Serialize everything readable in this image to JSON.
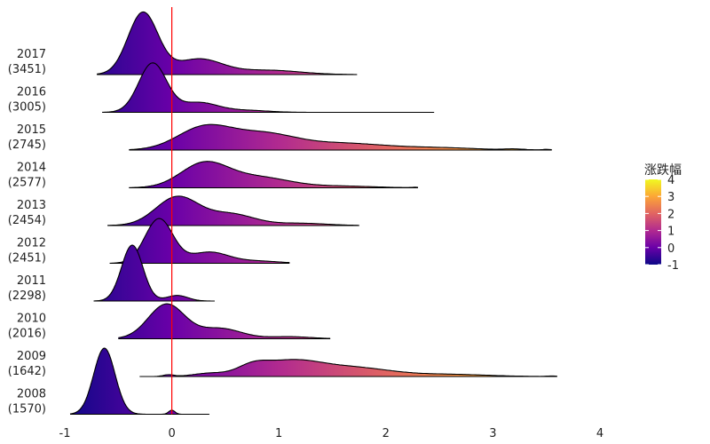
{
  "chart_data": {
    "type": "ridgeline",
    "title": "",
    "xlabel": "",
    "ylabel": "",
    "xlim": [
      -1,
      4
    ],
    "x_ticks": [
      -1,
      0,
      1,
      2,
      3,
      4
    ],
    "vline_x": 0,
    "vline_color": "#ff0000",
    "legend": {
      "title": "涨跌幅",
      "ticks": [
        4,
        3,
        2,
        1,
        0,
        -1
      ],
      "range": [
        -1,
        4
      ],
      "placement": "right"
    },
    "colorscale": [
      "#0d0887",
      "#6a00a8",
      "#b12a90",
      "#e16462",
      "#fca636",
      "#f0f921"
    ],
    "series": [
      {
        "year": "2008",
        "count": "(1570)",
        "range": [
          -0.95,
          0.35
        ],
        "peaks": [
          {
            "mu": -0.63,
            "sigma": 0.1,
            "w": 1.0
          },
          {
            "mu": 0.0,
            "sigma": 0.03,
            "w": 0.06
          }
        ],
        "height": 1.55
      },
      {
        "year": "2009",
        "count": "(1642)",
        "range": [
          -0.3,
          3.6
        ],
        "peaks": [
          {
            "mu": -0.03,
            "sigma": 0.05,
            "w": 0.1
          },
          {
            "mu": 0.35,
            "sigma": 0.15,
            "w": 0.18
          },
          {
            "mu": 0.75,
            "sigma": 0.14,
            "w": 0.45
          },
          {
            "mu": 1.1,
            "sigma": 0.28,
            "w": 0.85
          },
          {
            "mu": 1.7,
            "sigma": 0.35,
            "w": 0.5
          },
          {
            "mu": 2.6,
            "sigma": 0.35,
            "w": 0.12
          },
          {
            "mu": 3.55,
            "sigma": 0.04,
            "w": 0.03
          }
        ],
        "height": 0.4
      },
      {
        "year": "2010",
        "count": "(2016)",
        "range": [
          -0.5,
          1.48
        ],
        "peaks": [
          {
            "mu": -0.05,
            "sigma": 0.17,
            "w": 1.0
          },
          {
            "mu": 0.45,
            "sigma": 0.2,
            "w": 0.3
          },
          {
            "mu": 1.1,
            "sigma": 0.2,
            "w": 0.06
          }
        ],
        "height": 0.82
      },
      {
        "year": "2011",
        "count": "(2298)",
        "range": [
          -0.73,
          0.4
        ],
        "peaks": [
          {
            "mu": -0.37,
            "sigma": 0.1,
            "w": 1.0
          },
          {
            "mu": 0.05,
            "sigma": 0.1,
            "w": 0.1
          }
        ],
        "height": 1.31
      },
      {
        "year": "2012",
        "count": "(2451)",
        "range": [
          -0.58,
          1.1
        ],
        "peaks": [
          {
            "mu": -0.12,
            "sigma": 0.13,
            "w": 1.0
          },
          {
            "mu": 0.35,
            "sigma": 0.18,
            "w": 0.25
          },
          {
            "mu": 0.8,
            "sigma": 0.2,
            "w": 0.05
          }
        ],
        "height": 1.05
      },
      {
        "year": "2013",
        "count": "(2454)",
        "range": [
          -0.6,
          1.75
        ],
        "peaks": [
          {
            "mu": 0.05,
            "sigma": 0.2,
            "w": 1.0
          },
          {
            "mu": 0.55,
            "sigma": 0.22,
            "w": 0.4
          },
          {
            "mu": 1.2,
            "sigma": 0.25,
            "w": 0.08
          }
        ],
        "height": 0.69
      },
      {
        "year": "2014",
        "count": "(2577)",
        "range": [
          -0.4,
          2.3
        ],
        "peaks": [
          {
            "mu": 0.3,
            "sigma": 0.22,
            "w": 1.0
          },
          {
            "mu": 0.8,
            "sigma": 0.3,
            "w": 0.45
          },
          {
            "mu": 1.6,
            "sigma": 0.3,
            "w": 0.07
          },
          {
            "mu": 2.27,
            "sigma": 0.03,
            "w": 0.02
          }
        ],
        "height": 0.62
      },
      {
        "year": "2015",
        "count": "(2745)",
        "range": [
          -0.4,
          3.55
        ],
        "peaks": [
          {
            "mu": 0.3,
            "sigma": 0.25,
            "w": 1.0
          },
          {
            "mu": 0.85,
            "sigma": 0.3,
            "w": 0.7
          },
          {
            "mu": 1.6,
            "sigma": 0.4,
            "w": 0.3
          },
          {
            "mu": 2.5,
            "sigma": 0.35,
            "w": 0.1
          },
          {
            "mu": 3.2,
            "sigma": 0.1,
            "w": 0.04
          },
          {
            "mu": 3.5,
            "sigma": 0.04,
            "w": 0.03
          }
        ],
        "height": 0.6
      },
      {
        "year": "2016",
        "count": "(3005)",
        "range": [
          -0.65,
          2.45
        ],
        "peaks": [
          {
            "mu": -0.18,
            "sigma": 0.13,
            "w": 1.0
          },
          {
            "mu": 0.25,
            "sigma": 0.18,
            "w": 0.2
          },
          {
            "mu": 0.7,
            "sigma": 0.2,
            "w": 0.04
          }
        ],
        "height": 1.16
      },
      {
        "year": "2017",
        "count": "(3451)",
        "range": [
          -0.7,
          1.73
        ],
        "peaks": [
          {
            "mu": -0.27,
            "sigma": 0.14,
            "w": 1.0
          },
          {
            "mu": 0.25,
            "sigma": 0.22,
            "w": 0.25
          },
          {
            "mu": 0.9,
            "sigma": 0.3,
            "w": 0.07
          }
        ],
        "height": 1.47
      }
    ]
  }
}
